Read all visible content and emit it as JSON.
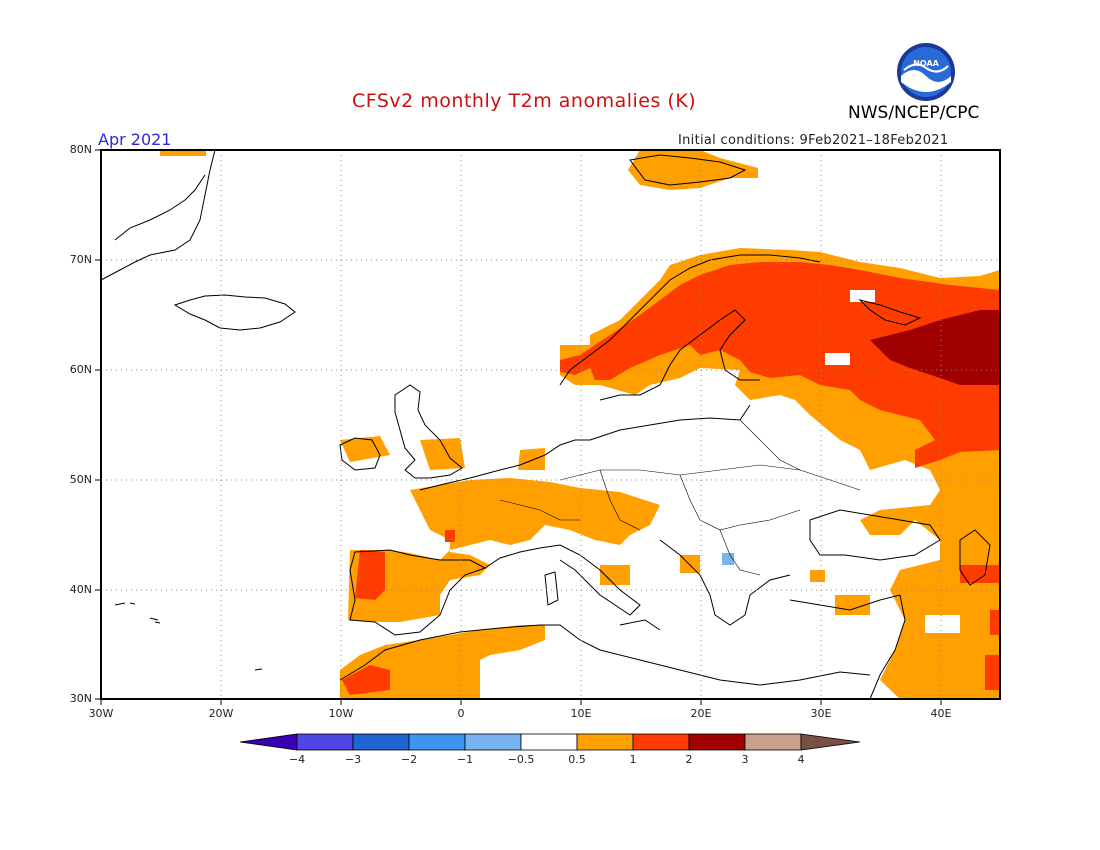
{
  "title": "CFSv2 monthly T2m anomalies (K)",
  "agency": "NWS/NCEP/CPC",
  "logo_text": "NOAA",
  "period": "Apr 2021",
  "initial_conditions": "Initial conditions: 9Feb2021–18Feb2021",
  "lat_labels": [
    "80N",
    "70N",
    "60N",
    "50N",
    "40N",
    "30N"
  ],
  "lon_labels": [
    "30W",
    "20W",
    "10W",
    "0",
    "10E",
    "20E",
    "30E",
    "40E"
  ],
  "colorbar": {
    "labels": [
      "−4",
      "−3",
      "−2",
      "−1",
      "−0.5",
      "0.5",
      "1",
      "2",
      "3",
      "4"
    ],
    "colors": [
      "#3c00b4",
      "#5046e6",
      "#1e64d2",
      "#3c96f0",
      "#78b4f0",
      "#ffffff",
      "#ffa000",
      "#ff3c00",
      "#a00000",
      "#c8a08c",
      "#785046"
    ]
  },
  "anomaly_colors": {
    "positive_0_5_to_1": "#ffa000",
    "positive_1_to_2": "#ff3c00",
    "positive_2_to_3": "#a00000",
    "negative_minus1_to_minus0_5": "#78b4f0"
  }
}
